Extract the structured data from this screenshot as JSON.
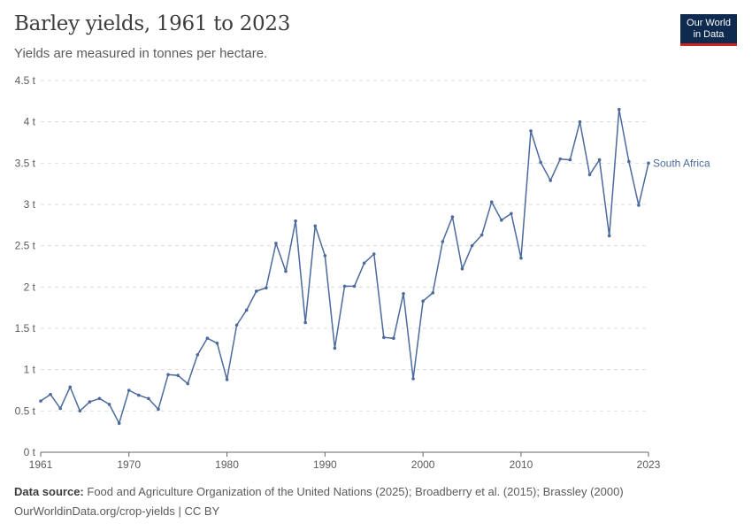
{
  "header": {
    "title": "Barley yields, 1961 to 2023",
    "subtitle": "Yields are measured in tonnes per hectare."
  },
  "logo": {
    "line1": "Our World",
    "line2": "in Data"
  },
  "footer": {
    "source_label": "Data source:",
    "source_text": "Food and Agriculture Organization of the United Nations (2025); Broadberry et al. (2015); Brassley (2000)",
    "credit_link": "OurWorldinData.org/crop-yields",
    "credit_sep": " | ",
    "license": "CC BY"
  },
  "colors": {
    "line": "#4c6a9c",
    "grid": "#dddddd",
    "axis": "#666666",
    "tick_text": "#5b5b5b",
    "logo_bg": "#0f2a4f",
    "logo_accent": "#ce261e"
  },
  "chart_data": {
    "type": "line",
    "title": "Barley yields, 1961 to 2023",
    "subtitle": "Yields are measured in tonnes per hectare.",
    "ylim": [
      0,
      4.5
    ],
    "xlim": [
      1961,
      2023
    ],
    "y_ticks": [
      0,
      0.5,
      1,
      1.5,
      2,
      2.5,
      3,
      3.5,
      4,
      4.5
    ],
    "y_tick_labels": [
      "0 t",
      "0.5 t",
      "1 t",
      "1.5 t",
      "2 t",
      "2.5 t",
      "3 t",
      "3.5 t",
      "4 t",
      "4.5 t"
    ],
    "x_ticks": [
      1961,
      1970,
      1980,
      1990,
      2000,
      2010,
      2023
    ],
    "x_tick_labels": [
      "1961",
      "1970",
      "1980",
      "1990",
      "2000",
      "2010",
      "2023"
    ],
    "grid": "horizontal dashed",
    "series": [
      {
        "name": "South Africa",
        "label_position": "right end",
        "x": [
          1961,
          1962,
          1963,
          1964,
          1965,
          1966,
          1967,
          1968,
          1969,
          1970,
          1971,
          1972,
          1973,
          1974,
          1975,
          1976,
          1977,
          1978,
          1979,
          1980,
          1981,
          1982,
          1983,
          1984,
          1985,
          1986,
          1987,
          1988,
          1989,
          1990,
          1991,
          1992,
          1993,
          1994,
          1995,
          1996,
          1997,
          1998,
          1999,
          2000,
          2001,
          2002,
          2003,
          2004,
          2005,
          2006,
          2007,
          2008,
          2009,
          2010,
          2011,
          2012,
          2013,
          2014,
          2015,
          2016,
          2017,
          2018,
          2019,
          2020,
          2021,
          2022,
          2023
        ],
        "values": [
          0.62,
          0.7,
          0.53,
          0.79,
          0.5,
          0.61,
          0.65,
          0.58,
          0.35,
          0.75,
          0.69,
          0.65,
          0.52,
          0.94,
          0.93,
          0.83,
          1.18,
          1.38,
          1.32,
          0.88,
          1.54,
          1.72,
          1.95,
          1.99,
          2.53,
          2.19,
          2.8,
          1.57,
          2.74,
          2.38,
          1.26,
          2.01,
          2.01,
          2.29,
          2.4,
          1.39,
          1.38,
          1.92,
          0.89,
          1.83,
          1.93,
          2.55,
          2.85,
          2.22,
          2.5,
          2.63,
          3.03,
          2.81,
          2.89,
          2.35,
          3.89,
          3.51,
          3.29,
          3.55,
          3.54,
          4.0,
          3.36,
          3.54,
          2.62,
          4.15,
          3.52,
          2.99,
          3.5
        ]
      }
    ]
  }
}
